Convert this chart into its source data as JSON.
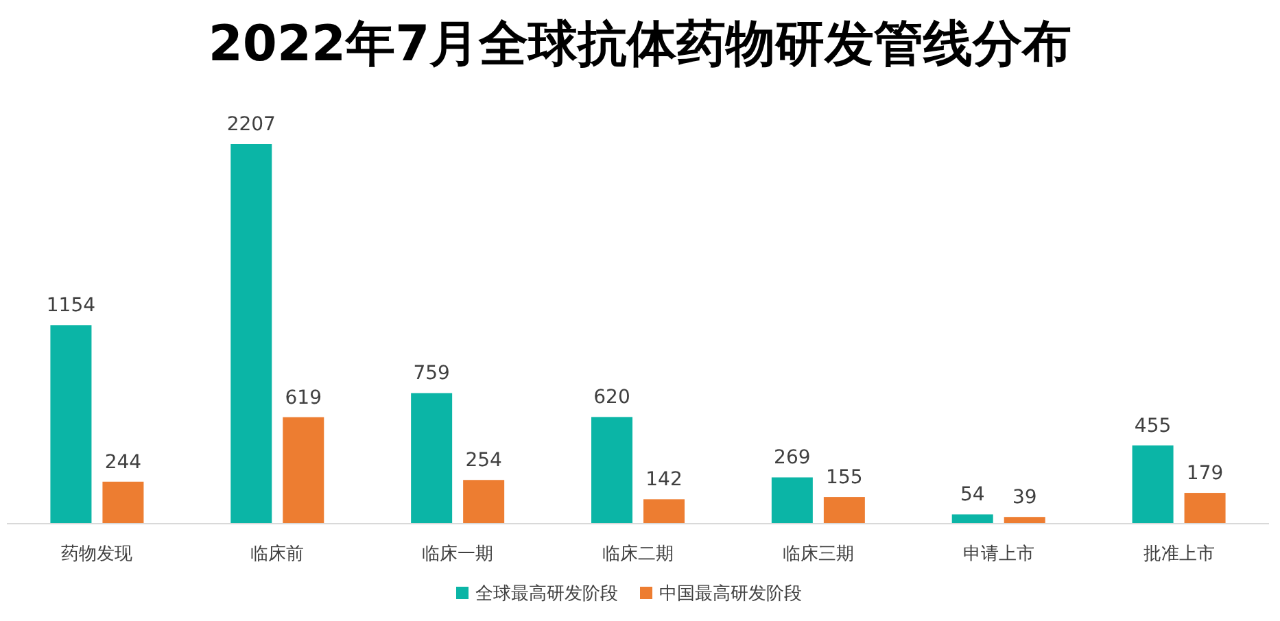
{
  "chart_data": {
    "type": "bar",
    "title": "2022年7月全球抗体药物研发管线分布",
    "categories": [
      "药物发现",
      "临床前",
      "临床一期",
      "临床二期",
      "临床三期",
      "申请上市",
      "批准上市"
    ],
    "series": [
      {
        "name": "全球最高研发阶段",
        "color": "#0bb5a6",
        "values": [
          1154,
          2207,
          759,
          620,
          269,
          54,
          455
        ]
      },
      {
        "name": "中国最高研发阶段",
        "color": "#ed7d31",
        "values": [
          244,
          619,
          254,
          142,
          155,
          39,
          179
        ]
      }
    ],
    "data_labels": true,
    "legend": "bottom"
  }
}
